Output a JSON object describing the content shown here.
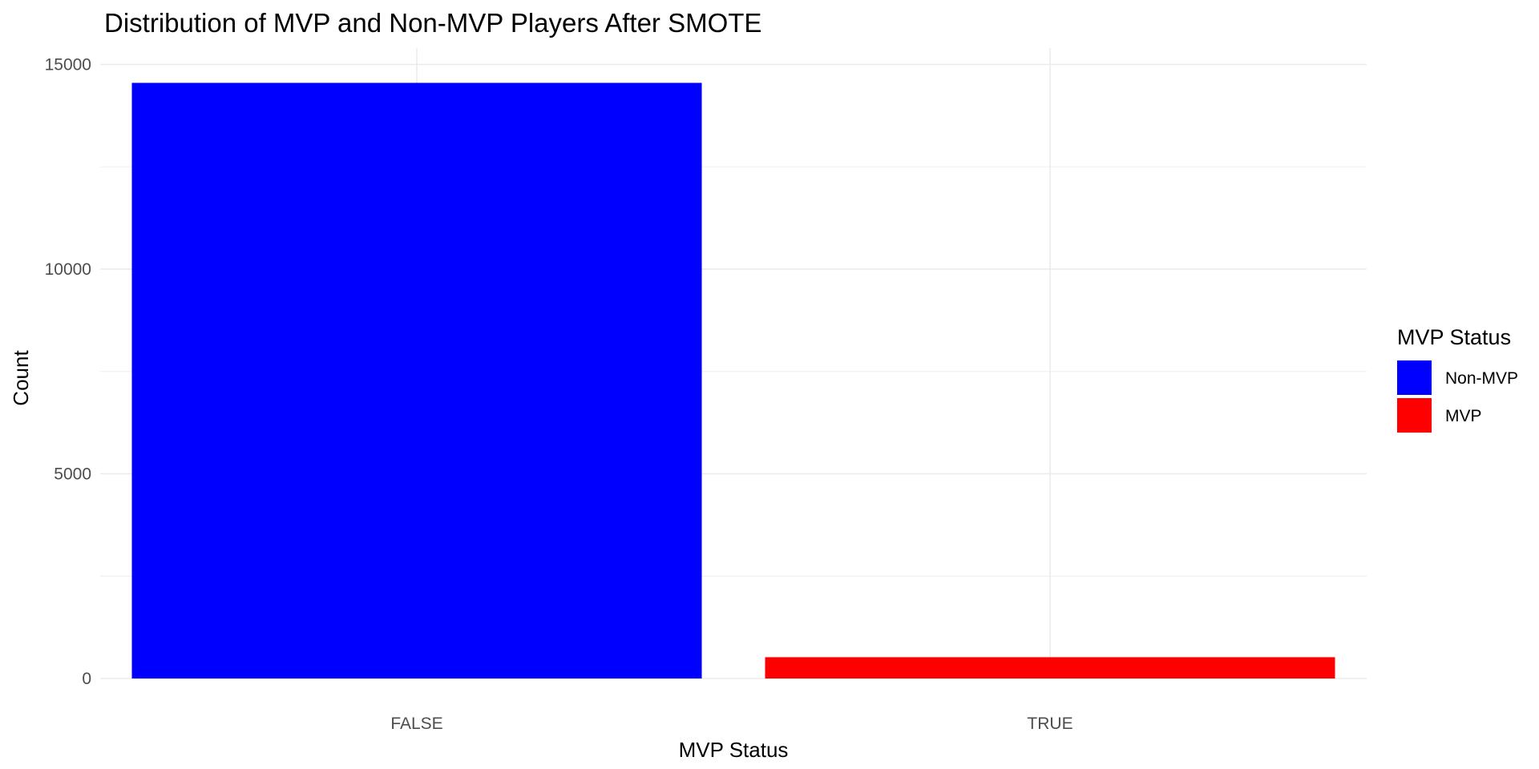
{
  "chart_data": {
    "type": "bar",
    "title": "Distribution of MVP and Non-MVP Players After SMOTE",
    "xlabel": "MVP Status",
    "ylabel": "Count",
    "categories": [
      "FALSE",
      "TRUE"
    ],
    "values": [
      14550,
      520
    ],
    "colors": [
      "#0000ff",
      "#ff0000"
    ],
    "ylim": [
      0,
      15400
    ],
    "yticks": [
      0,
      5000,
      10000,
      15000
    ],
    "ytick_labels": [
      "0",
      "5000",
      "10000",
      "15000"
    ],
    "grid": true,
    "legend": {
      "title": "MVP Status",
      "placement": "right",
      "entries": [
        {
          "label": "Non-MVP",
          "color": "#0000ff"
        },
        {
          "label": "MVP",
          "color": "#ff0000"
        }
      ]
    }
  }
}
